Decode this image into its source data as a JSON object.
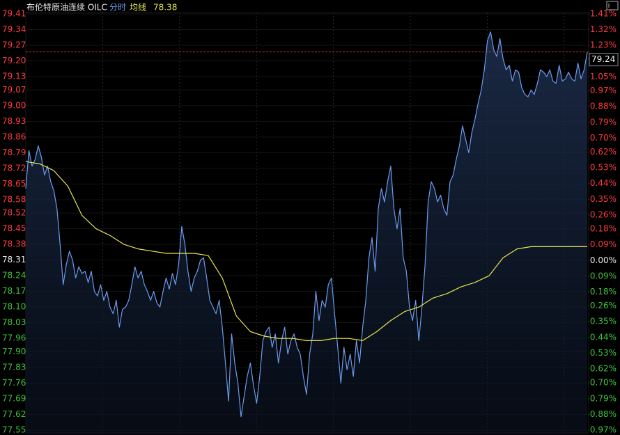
{
  "chart_data": {
    "type": "line",
    "title": "布伦特原油连续 OILC",
    "average_price": 78.38,
    "last_price": 79.24,
    "up_color": "#ff3b3b",
    "down_color": "#3ec43e",
    "flat_color": "#e6e6e6",
    "grid": true,
    "ylim": [
      77.55,
      79.41
    ],
    "yticks": [
      79.41,
      79.34,
      79.27,
      {
        "value": 79.2,
        "label": "79.20"
      },
      79.13,
      79.07,
      {
        "value": 79,
        "label": "79.00"
      },
      78.93,
      78.86,
      78.79,
      78.72,
      78.65,
      78.58,
      78.52,
      78.45,
      78.38,
      78.31,
      78.24,
      78.17,
      {
        "value": 78.1,
        "label": "78.10"
      },
      78.03,
      77.96,
      {
        "value": 77.9,
        "label": "77.90"
      },
      77.83,
      77.76,
      77.69,
      77.62,
      77.55
    ],
    "y2lim": [
      -0.97,
      1.41
    ],
    "y2ticks": [
      {
        "value": 1.41,
        "label": "1.41%"
      },
      {
        "value": 1.32,
        "label": "1.32%"
      },
      {
        "value": 1.23,
        "label": "1.23%"
      },
      {
        "value": 1.15,
        "label": "1.15%"
      },
      {
        "value": 1.05,
        "label": "1.05%"
      },
      {
        "value": 0.97,
        "label": "0.97%"
      },
      {
        "value": 0.88,
        "label": "0.88%"
      },
      {
        "value": 0.79,
        "label": "0.79%"
      },
      {
        "value": 0.7,
        "label": "0.70%"
      },
      {
        "value": 0.62,
        "label": "0.62%"
      },
      {
        "value": 0.53,
        "label": "0.53%"
      },
      {
        "value": 0.44,
        "label": "0.44%"
      },
      {
        "value": 0.35,
        "label": "0.35%"
      },
      {
        "value": 0.26,
        "label": "0.26%"
      },
      {
        "value": 0.18,
        "label": "0.18%"
      },
      {
        "value": 0.09,
        "label": "0.09%"
      },
      {
        "value": 0,
        "label": "0.00%"
      },
      {
        "value": -0.09,
        "label": "0.09%"
      },
      {
        "value": -0.18,
        "label": "0.18%"
      },
      {
        "value": -0.26,
        "label": "0.26%"
      },
      {
        "value": -0.35,
        "label": "0.35%"
      },
      {
        "value": -0.44,
        "label": "0.44%"
      },
      {
        "value": -0.53,
        "label": "0.53%"
      },
      {
        "value": -0.62,
        "label": "0.62%"
      },
      {
        "value": -0.7,
        "label": "0.70%"
      },
      {
        "value": -0.79,
        "label": "0.79%"
      },
      {
        "value": -0.88,
        "label": "0.88%"
      },
      {
        "value": -0.97,
        "label": "0.97%"
      }
    ],
    "series": [
      {
        "name": "分时",
        "color": "#6b9cf0",
        "values": [
          78.63,
          78.8,
          78.73,
          78.76,
          78.82,
          78.77,
          78.69,
          78.73,
          78.66,
          78.62,
          78.54,
          78.38,
          78.2,
          78.29,
          78.35,
          78.31,
          78.23,
          78.28,
          78.25,
          78.26,
          78.21,
          78.26,
          78.17,
          78.15,
          78.2,
          78.13,
          78.17,
          78.1,
          78.07,
          78.13,
          78.01,
          78.09,
          78.1,
          78.13,
          78.2,
          78.28,
          78.23,
          78.26,
          78.2,
          78.17,
          78.13,
          78.17,
          78.12,
          78.1,
          78.17,
          78.23,
          78.18,
          78.25,
          78.2,
          78.29,
          78.46,
          78.38,
          78.26,
          78.17,
          78.23,
          78.26,
          78.31,
          78.32,
          78.23,
          78.13,
          78.1,
          78.07,
          78.13,
          78.01,
          77.85,
          77.68,
          77.98,
          77.85,
          77.76,
          77.61,
          77.7,
          77.79,
          77.85,
          77.75,
          77.67,
          77.79,
          77.95,
          77.99,
          78.01,
          77.92,
          77.98,
          77.85,
          77.95,
          78.01,
          77.89,
          77.95,
          77.98,
          77.92,
          77.89,
          77.79,
          77.71,
          77.89,
          77.98,
          78.17,
          78.04,
          78.13,
          78.1,
          78.2,
          78.23,
          78.07,
          77.92,
          77.76,
          77.92,
          77.82,
          77.89,
          77.79,
          77.95,
          77.85,
          78.01,
          78.13,
          78.32,
          78.41,
          78.26,
          78.54,
          78.63,
          78.57,
          78.66,
          78.73,
          78.54,
          78.45,
          78.54,
          78.32,
          78.26,
          78.1,
          78.04,
          78.13,
          77.95,
          78.1,
          78.29,
          78.57,
          78.66,
          78.63,
          78.57,
          78.6,
          78.54,
          78.51,
          78.66,
          78.69,
          78.76,
          78.82,
          78.91,
          78.85,
          78.79,
          78.88,
          78.94,
          79.01,
          79.07,
          79.16,
          79.29,
          79.33,
          79.25,
          79.22,
          79.3,
          79.21,
          79.16,
          79.18,
          79.11,
          79.16,
          79.15,
          79.08,
          79.05,
          79.04,
          79.07,
          79.05,
          79.1,
          79.16,
          79.15,
          79.13,
          79.16,
          79.11,
          79.1,
          79.18,
          79.11,
          79.12,
          79.15,
          79.12,
          79.11,
          79.19,
          79.12,
          79.16,
          79.24
        ]
      },
      {
        "name": "均线",
        "color": "#e8e64c",
        "values": [
          78.75,
          78.74,
          78.71,
          78.64,
          78.51,
          78.45,
          78.42,
          78.38,
          78.36,
          78.35,
          78.34,
          78.34,
          78.34,
          78.33,
          78.23,
          78.06,
          77.99,
          77.97,
          77.96,
          77.96,
          77.95,
          77.95,
          77.96,
          77.96,
          77.95,
          77.99,
          78.04,
          78.08,
          78.1,
          78.14,
          78.16,
          78.19,
          78.21,
          78.24,
          78.32,
          78.36,
          78.37,
          78.37,
          78.37,
          78.37,
          78.37
        ]
      }
    ]
  }
}
